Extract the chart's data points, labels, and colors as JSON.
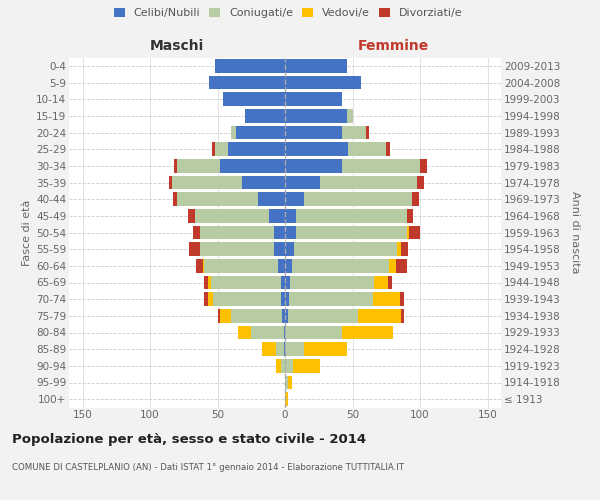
{
  "age_groups": [
    "100+",
    "95-99",
    "90-94",
    "85-89",
    "80-84",
    "75-79",
    "70-74",
    "65-69",
    "60-64",
    "55-59",
    "50-54",
    "45-49",
    "40-44",
    "35-39",
    "30-34",
    "25-29",
    "20-24",
    "15-19",
    "10-14",
    "5-9",
    "0-4"
  ],
  "birth_years": [
    "≤ 1913",
    "1914-1918",
    "1919-1923",
    "1924-1928",
    "1929-1933",
    "1934-1938",
    "1939-1943",
    "1944-1948",
    "1949-1953",
    "1954-1958",
    "1959-1963",
    "1964-1968",
    "1969-1973",
    "1974-1978",
    "1979-1983",
    "1984-1988",
    "1989-1993",
    "1994-1998",
    "1999-2003",
    "2004-2008",
    "2009-2013"
  ],
  "male_celibe": [
    0,
    0,
    0,
    1,
    1,
    2,
    3,
    3,
    5,
    8,
    8,
    12,
    20,
    32,
    48,
    42,
    36,
    30,
    46,
    56,
    52
  ],
  "male_coniugato": [
    0,
    0,
    3,
    6,
    24,
    38,
    50,
    52,
    55,
    55,
    55,
    55,
    60,
    52,
    32,
    10,
    4,
    0,
    0,
    0,
    0
  ],
  "male_vedovo": [
    0,
    0,
    4,
    10,
    10,
    8,
    4,
    2,
    1,
    0,
    0,
    0,
    0,
    0,
    0,
    0,
    0,
    0,
    0,
    0,
    0
  ],
  "male_divorziato": [
    0,
    0,
    0,
    0,
    0,
    2,
    3,
    3,
    5,
    8,
    5,
    5,
    3,
    2,
    2,
    2,
    0,
    0,
    0,
    0,
    0
  ],
  "fem_nubile": [
    0,
    0,
    0,
    0,
    0,
    2,
    3,
    4,
    5,
    7,
    8,
    8,
    14,
    26,
    42,
    47,
    42,
    46,
    42,
    56,
    46
  ],
  "fem_coniugata": [
    0,
    2,
    6,
    14,
    42,
    52,
    62,
    62,
    72,
    76,
    82,
    82,
    80,
    72,
    58,
    28,
    18,
    4,
    0,
    0,
    0
  ],
  "fem_vedova": [
    2,
    3,
    20,
    32,
    38,
    32,
    20,
    10,
    5,
    3,
    2,
    0,
    0,
    0,
    0,
    0,
    0,
    0,
    0,
    0,
    0
  ],
  "fem_divorziata": [
    0,
    0,
    0,
    0,
    0,
    2,
    3,
    3,
    8,
    5,
    8,
    5,
    5,
    5,
    5,
    3,
    2,
    0,
    0,
    0,
    0
  ],
  "colors": {
    "celibe": "#4472c4",
    "coniugato": "#b8cca4",
    "vedovo": "#ffc000",
    "divorziato": "#c0392b"
  },
  "title": "Popolazione per età, sesso e stato civile - 2014",
  "subtitle": "COMUNE DI CASTELPLANIO (AN) - Dati ISTAT 1° gennaio 2014 - Elaborazione TUTTITALIA.IT",
  "label_maschi": "Maschi",
  "label_femmine": "Femmine",
  "ylabel_left": "Fasce di età",
  "ylabel_right": "Anni di nascita",
  "xlim": 160,
  "legend_labels": [
    "Celibi/Nubili",
    "Coniugati/e",
    "Vedovi/e",
    "Divorziati/e"
  ],
  "bg_color": "#f2f2f2",
  "plot_bg": "#ffffff"
}
